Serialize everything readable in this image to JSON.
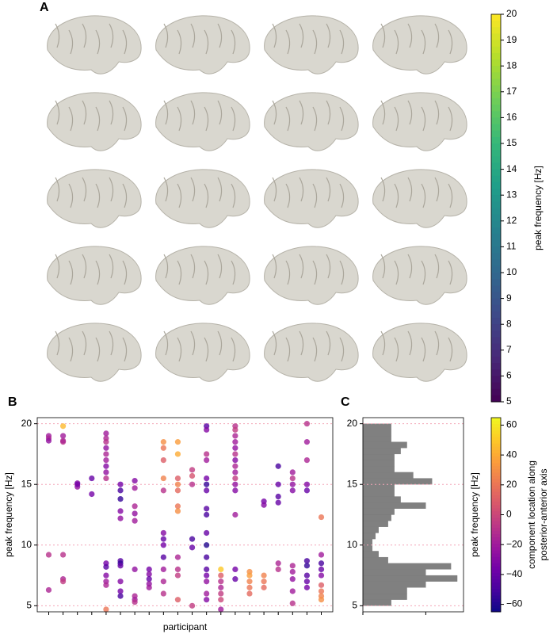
{
  "panels": [
    "A",
    "B",
    "C"
  ],
  "chart_data": [
    {
      "type": "colorbar",
      "ylabel": "peak frequency [Hz]",
      "colormap": "viridis",
      "ylim": [
        5,
        20
      ],
      "yticks": [
        5,
        6,
        7,
        8,
        9,
        10,
        11,
        12,
        13,
        14,
        15,
        16,
        17,
        18,
        19,
        20
      ]
    },
    {
      "type": "scatter",
      "xlabel": "participant",
      "ylabel": "peak frequency [Hz]",
      "colormap": "plasma",
      "grid": true,
      "xlim": [
        0.2,
        20.8
      ],
      "xticks": [
        1,
        2,
        3,
        4,
        5,
        6,
        7,
        8,
        9,
        10,
        11,
        12,
        13,
        14,
        15,
        16,
        17,
        18,
        19,
        20
      ],
      "ylim": [
        4.5,
        20.5
      ],
      "yticks": [
        5,
        10,
        15,
        20
      ],
      "x": [
        1,
        1,
        1,
        1,
        1,
        2,
        2,
        2,
        2,
        2,
        2,
        2,
        3,
        3,
        3,
        4,
        4,
        5,
        5,
        5,
        5,
        5,
        5,
        5,
        5,
        5,
        5,
        5,
        5,
        5,
        5,
        5,
        6,
        6,
        6,
        6,
        6,
        6,
        6,
        6,
        6,
        6,
        6,
        7,
        7,
        7,
        7,
        7,
        7,
        7,
        7,
        7,
        8,
        8,
        8,
        8,
        8,
        9,
        9,
        9,
        9,
        9,
        9,
        9,
        9,
        9,
        9,
        9,
        9,
        10,
        10,
        10,
        10,
        10,
        10,
        10,
        10,
        10,
        10,
        10,
        11,
        11,
        11,
        11,
        11,
        11,
        12,
        12,
        12,
        12,
        12,
        12,
        12,
        12,
        12,
        12,
        12,
        12,
        12,
        12,
        12,
        12,
        12,
        13,
        13,
        13,
        13,
        13,
        13,
        13,
        14,
        14,
        14,
        14,
        14,
        14,
        14,
        14,
        14,
        14,
        14,
        14,
        14,
        14,
        14,
        15,
        15,
        15,
        15,
        15,
        16,
        16,
        16,
        16,
        16,
        17,
        17,
        17,
        17,
        17,
        17,
        18,
        18,
        18,
        18,
        18,
        18,
        18,
        18,
        18,
        19,
        19,
        19,
        19,
        19,
        19,
        19,
        19,
        19,
        19,
        20,
        20,
        20,
        20,
        20,
        20,
        20,
        20,
        20
      ],
      "values": [
        19,
        18.8,
        18.6,
        9.2,
        6.3,
        19.8,
        19,
        18.5,
        18.6,
        9.2,
        7.2,
        7,
        15.1,
        14.8,
        15,
        15.5,
        14.2,
        19.2,
        18.8,
        18.5,
        18,
        17.5,
        17,
        16.5,
        16,
        15.5,
        8.5,
        8.2,
        7.5,
        7,
        6.7,
        4.7,
        15,
        14.5,
        13.8,
        12.8,
        12.2,
        8.7,
        8.5,
        8.3,
        7,
        6.2,
        5.8,
        15.3,
        14.7,
        13.2,
        12.6,
        12,
        8,
        5.8,
        5.5,
        5.3,
        8,
        7.6,
        7.2,
        6.8,
        6.5,
        18.5,
        18,
        17,
        15.5,
        14.5,
        11,
        10.5,
        10,
        9,
        8,
        7,
        6,
        18.5,
        17.5,
        15.5,
        15,
        14.5,
        13.2,
        12.8,
        9,
        8,
        7.5,
        5.5,
        16.2,
        15.7,
        15,
        10.5,
        9.8,
        5,
        19.8,
        19.5,
        17.5,
        17,
        15.5,
        15,
        14.5,
        13,
        12.5,
        11,
        10,
        9,
        8,
        7.5,
        7,
        6,
        5.5,
        8,
        7.5,
        7,
        6.5,
        6,
        5.5,
        4.7,
        19.8,
        19.5,
        19,
        18.5,
        18,
        17.5,
        17,
        16.5,
        16,
        15.5,
        15,
        14.5,
        12.5,
        8,
        7.2,
        7.8,
        7.5,
        7,
        6.5,
        6,
        13.6,
        13.3,
        7.5,
        7,
        6.5,
        16.5,
        15,
        14,
        13.5,
        8.5,
        8,
        16,
        15.5,
        15,
        14.5,
        8.3,
        7.8,
        7.2,
        6.2,
        5.2,
        20,
        18.5,
        17,
        15,
        14.5,
        8.7,
        8.3,
        7.5,
        7,
        6.5,
        12.3,
        9.2,
        8.5,
        8,
        7.5,
        6.7,
        6.2,
        5.8,
        5.5
      ],
      "location": [
        -20,
        -15,
        -25,
        -10,
        -15,
        45,
        -20,
        -10,
        -15,
        -10,
        -15,
        -5,
        -30,
        -25,
        -35,
        -40,
        -35,
        -20,
        -15,
        -10,
        -25,
        -15,
        -20,
        -30,
        -25,
        -10,
        -35,
        -45,
        -30,
        -20,
        -15,
        20,
        -35,
        -50,
        -55,
        -30,
        -25,
        -45,
        -55,
        -40,
        -30,
        -35,
        -50,
        -30,
        -20,
        -15,
        -25,
        -20,
        -25,
        -15,
        -20,
        -10,
        -35,
        -30,
        -40,
        -25,
        -20,
        30,
        20,
        10,
        25,
        -10,
        -30,
        -40,
        -35,
        -45,
        -20,
        -15,
        -10,
        35,
        40,
        10,
        25,
        15,
        20,
        30,
        -15,
        -10,
        -5,
        10,
        -5,
        5,
        -10,
        -50,
        -40,
        -5,
        -45,
        -30,
        -10,
        -20,
        -35,
        -55,
        -40,
        -45,
        -50,
        -40,
        -60,
        -50,
        -45,
        -35,
        -25,
        -20,
        -30,
        50,
        10,
        -10,
        -15,
        -5,
        0,
        -20,
        -10,
        -5,
        -15,
        -20,
        -25,
        -10,
        -30,
        -15,
        -20,
        -5,
        -25,
        -30,
        -20,
        -35,
        -40,
        30,
        35,
        25,
        20,
        15,
        -35,
        -30,
        25,
        20,
        15,
        -50,
        -40,
        -45,
        -40,
        -15,
        -10,
        -20,
        -10,
        -25,
        -30,
        -15,
        -20,
        -25,
        -20,
        -10,
        -10,
        -20,
        -15,
        -30,
        -40,
        -50,
        -55,
        -45,
        -40,
        -35,
        20,
        -20,
        -50,
        -40,
        -30,
        10,
        20,
        25,
        30
      ]
    },
    {
      "type": "histogram",
      "orientation": "horizontal",
      "ylabel": "peak frequency [Hz]",
      "color": "#808080",
      "grid": true,
      "xlim": [
        0,
        32
      ],
      "xticks": [
        0,
        20
      ],
      "ylim": [
        4.5,
        20.5
      ],
      "yticks": [
        5,
        10,
        15,
        20
      ],
      "bins": [
        5,
        5.5,
        6,
        6.5,
        7,
        7.5,
        8,
        8.5,
        9,
        9.5,
        10,
        10.5,
        11,
        11.5,
        12,
        12.5,
        13,
        13.5,
        14,
        14.5,
        15,
        15.5,
        16,
        16.5,
        17,
        17.5,
        18,
        18.5,
        19,
        19.5,
        20
      ],
      "counts": [
        9,
        14,
        14,
        20,
        30,
        20,
        28,
        8,
        5,
        3,
        3,
        4,
        5,
        8,
        9,
        10,
        20,
        12,
        10,
        10,
        22,
        16,
        10,
        10,
        10,
        12,
        14,
        9,
        9,
        9
      ]
    },
    {
      "type": "colorbar",
      "ylabel": [
        "component location along",
        "posterior-anterior axis"
      ],
      "colormap": "plasma",
      "ylim": [
        -65,
        65
      ],
      "yticks": [
        {
          "value": -60,
          "label": "−60"
        },
        {
          "value": -40,
          "label": "−40"
        },
        {
          "value": -20,
          "label": "−20"
        },
        0,
        20,
        40,
        60
      ]
    }
  ]
}
